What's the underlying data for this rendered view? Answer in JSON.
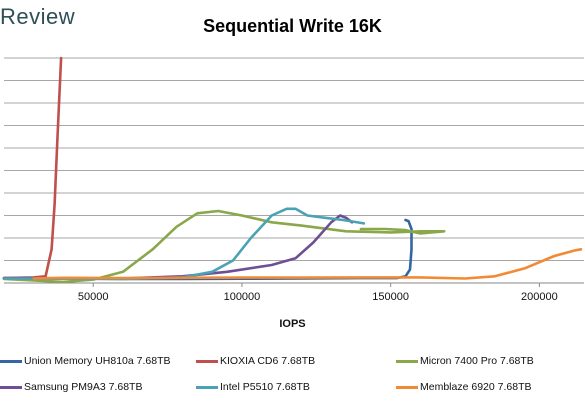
{
  "brand": "Review",
  "chart_data": {
    "type": "line",
    "title": "Sequential Write 16K",
    "xlabel": "IOPS",
    "ylabel": "",
    "xlim": [
      20000,
      215000
    ],
    "ylim": [
      0,
      10
    ],
    "x_ticks": [
      50000,
      100000,
      150000,
      200000
    ],
    "x_tick_labels": [
      "50000",
      "100000",
      "150000",
      "200000"
    ],
    "grid": "horizontal",
    "legend_position": "bottom",
    "series": [
      {
        "name": "Union Memory UH810a 7.68TB",
        "color": "#3465a4",
        "points": [
          [
            20000,
            0.2
          ],
          [
            40000,
            0.2
          ],
          [
            60000,
            0.18
          ],
          [
            80000,
            0.18
          ],
          [
            100000,
            0.19
          ],
          [
            120000,
            0.2
          ],
          [
            140000,
            0.22
          ],
          [
            152000,
            0.22
          ],
          [
            155000,
            0.3
          ],
          [
            156500,
            0.6
          ],
          [
            157000,
            1.5
          ],
          [
            157000,
            2.4
          ],
          [
            156000,
            2.75
          ],
          [
            155000,
            2.8
          ]
        ]
      },
      {
        "name": "KIOXIA CD6 7.68TB",
        "color": "#c0504d",
        "points": [
          [
            20000,
            0.22
          ],
          [
            30000,
            0.25
          ],
          [
            34000,
            0.3
          ],
          [
            36000,
            1.5
          ],
          [
            37000,
            3.5
          ],
          [
            38000,
            6.5
          ],
          [
            39200,
            10.0
          ]
        ]
      },
      {
        "name": "Micron 7400 Pro 7.68TB",
        "color": "#8aa84b",
        "points": [
          [
            20000,
            0.18
          ],
          [
            40000,
            0.05
          ],
          [
            50000,
            0.15
          ],
          [
            60000,
            0.5
          ],
          [
            70000,
            1.5
          ],
          [
            78000,
            2.5
          ],
          [
            85000,
            3.1
          ],
          [
            92000,
            3.2
          ],
          [
            100000,
            3.0
          ],
          [
            110000,
            2.7
          ],
          [
            120000,
            2.55
          ],
          [
            135000,
            2.3
          ],
          [
            150000,
            2.25
          ],
          [
            160000,
            2.3
          ],
          [
            168000,
            2.3
          ],
          [
            160000,
            2.2
          ],
          [
            155000,
            2.35
          ],
          [
            148000,
            2.4
          ],
          [
            140000,
            2.4
          ]
        ]
      },
      {
        "name": "Samsung PM9A3 7.68TB",
        "color": "#6e4f95",
        "points": [
          [
            20000,
            0.22
          ],
          [
            60000,
            0.2
          ],
          [
            80000,
            0.3
          ],
          [
            95000,
            0.5
          ],
          [
            110000,
            0.8
          ],
          [
            118000,
            1.1
          ],
          [
            124000,
            1.8
          ],
          [
            130000,
            2.7
          ],
          [
            133000,
            3.0
          ],
          [
            135000,
            2.9
          ],
          [
            137000,
            2.7
          ]
        ]
      },
      {
        "name": "Intel P5510 7.68TB",
        "color": "#4aa2b4",
        "points": [
          [
            20000,
            0.2
          ],
          [
            60000,
            0.18
          ],
          [
            80000,
            0.25
          ],
          [
            90000,
            0.5
          ],
          [
            97000,
            1.0
          ],
          [
            103000,
            2.0
          ],
          [
            110000,
            3.0
          ],
          [
            115000,
            3.3
          ],
          [
            118000,
            3.3
          ],
          [
            122000,
            3.0
          ],
          [
            128000,
            2.9
          ],
          [
            134000,
            2.8
          ],
          [
            141000,
            2.65
          ]
        ]
      },
      {
        "name": "Memblaze 6920 7.68TB",
        "color": "#f28a33",
        "points": [
          [
            30000,
            0.2
          ],
          [
            40000,
            0.23
          ],
          [
            60000,
            0.22
          ],
          [
            80000,
            0.23
          ],
          [
            100000,
            0.24
          ],
          [
            120000,
            0.24
          ],
          [
            140000,
            0.25
          ],
          [
            160000,
            0.25
          ],
          [
            175000,
            0.2
          ],
          [
            185000,
            0.3
          ],
          [
            195000,
            0.65
          ],
          [
            205000,
            1.2
          ],
          [
            212000,
            1.45
          ],
          [
            214000,
            1.5
          ]
        ]
      }
    ]
  }
}
